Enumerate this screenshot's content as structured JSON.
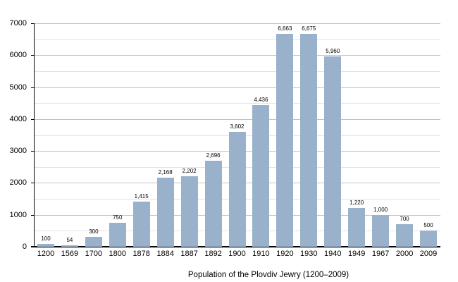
{
  "title": "Population of the Plovdiv Jewry (1200–2009)",
  "chart_data": {
    "type": "bar",
    "title": "Population of the Plovdiv Jewry (1200–2009)",
    "xlabel": "",
    "ylabel": "",
    "categories": [
      "1200",
      "1569",
      "1700",
      "1800",
      "1878",
      "1884",
      "1887",
      "1892",
      "1900",
      "1910",
      "1920",
      "1930",
      "1940",
      "1949",
      "1967",
      "2000",
      "2009"
    ],
    "values": [
      100,
      54,
      300,
      750,
      1415,
      2168,
      2202,
      2696,
      3602,
      4436,
      6663,
      6675,
      5960,
      1220,
      1000,
      700,
      500
    ],
    "value_labels": [
      "100",
      "54",
      "300",
      "750",
      "1,415",
      "2,168",
      "2,202",
      "2,696",
      "3,602",
      "4,436",
      "6,663",
      "6,675",
      "5,960",
      "1,220",
      "1,000",
      "700",
      "500"
    ],
    "ylim": [
      0,
      7000
    ],
    "y_major_ticks": [
      0,
      1000,
      2000,
      3000,
      4000,
      5000,
      6000,
      7000
    ],
    "y_minor_interval": 500,
    "grid": true,
    "legend": false,
    "colors": {
      "bar": "#9ab1cb",
      "major_grid": "#c2c2c2",
      "minor_grid": "#e2e2e2",
      "axis": "#000000",
      "background": "#ffffff"
    }
  }
}
